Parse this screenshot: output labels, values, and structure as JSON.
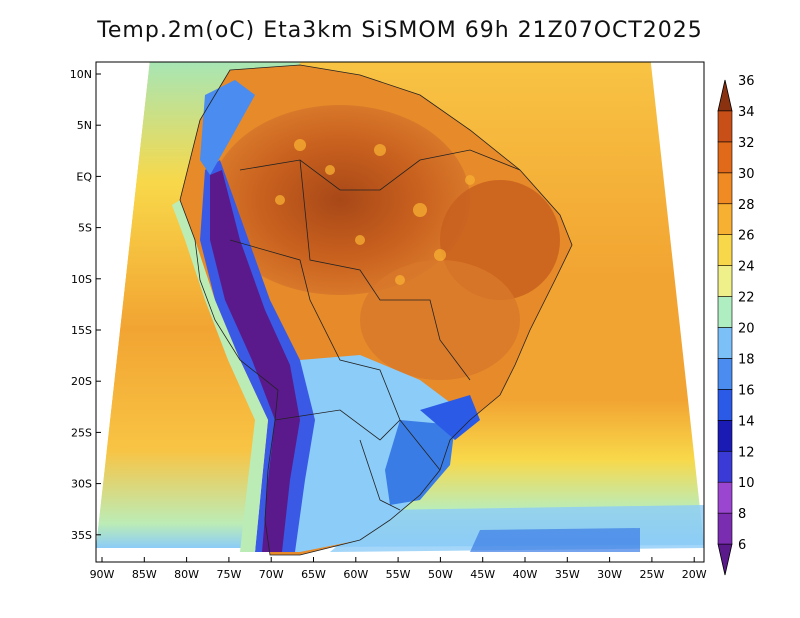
{
  "title": "Temp.2m(oC) Eta3km SiSMOM 69h 21Z07OCT2025",
  "lat_labels": [
    "10N",
    "5N",
    "EQ",
    "5S",
    "10S",
    "15S",
    "20S",
    "25S",
    "30S",
    "35S"
  ],
  "lon_labels": [
    "90W",
    "85W",
    "80W",
    "75W",
    "70W",
    "65W",
    "60W",
    "55W",
    "50W",
    "45W",
    "40W",
    "35W",
    "30W",
    "25W",
    "20W"
  ],
  "colorbar": {
    "labels": [
      "6",
      "8",
      "10",
      "12",
      "14",
      "16",
      "18",
      "20",
      "22",
      "24",
      "26",
      "28",
      "30",
      "32",
      "34",
      "36"
    ],
    "colors": [
      "#5a1a8c",
      "#7a2db0",
      "#9a46d0",
      "#3a3ad6",
      "#1a1ab4",
      "#2a5ae6",
      "#4a8cf0",
      "#7cc0f8",
      "#aeeec0",
      "#f0f08a",
      "#f8d84a",
      "#f8b032",
      "#f08a22",
      "#e06a1a",
      "#c85018",
      "#8a3210"
    ]
  },
  "map_colors": {
    "ocean_north": "#f8c444",
    "ocean_south": "#f0a030",
    "amazon": "#c8601e",
    "hot_core": "#a84818",
    "brazil_east": "#e68a2a",
    "cerrado": "#f2a23a",
    "andes_high": "#5a1a8c",
    "andes_mid": "#3a5ae6",
    "south_cool": "#8cccf8",
    "south_cold": "#3a7ce6",
    "pacific_coast": "#a6e6b6",
    "atlantic_south": "#bcecb6"
  }
}
